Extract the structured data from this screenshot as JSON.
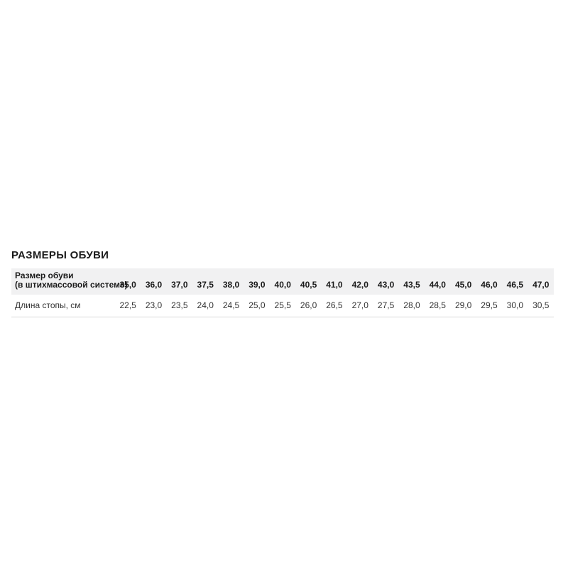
{
  "page": {
    "title": "РАЗМЕРЫ ОБУВИ"
  },
  "size_table": {
    "header": {
      "label_line1": "Размер обуви",
      "label_line2": "(в штихмассовой системе)",
      "sizes": [
        "35,0",
        "36,0",
        "37,0",
        "37,5",
        "38,0",
        "39,0",
        "40,0",
        "40,5",
        "41,0",
        "42,0",
        "43,0",
        "43,5",
        "44,0",
        "45,0",
        "46,0",
        "46,5",
        "47,0"
      ]
    },
    "foot_length_row": {
      "label": "Длина стопы, см",
      "values": [
        "22,5",
        "23,0",
        "23,5",
        "24,0",
        "24,5",
        "25,0",
        "25,5",
        "26,0",
        "26,5",
        "27,0",
        "27,5",
        "28,0",
        "28,5",
        "29,0",
        "29,5",
        "30,0",
        "30,5"
      ]
    },
    "colors": {
      "header_bg": "#f1f1f2",
      "border": "#d9d9d9",
      "title_text": "#1b1b1b",
      "header_text": "#1a1a1a",
      "body_text": "#333333"
    }
  }
}
